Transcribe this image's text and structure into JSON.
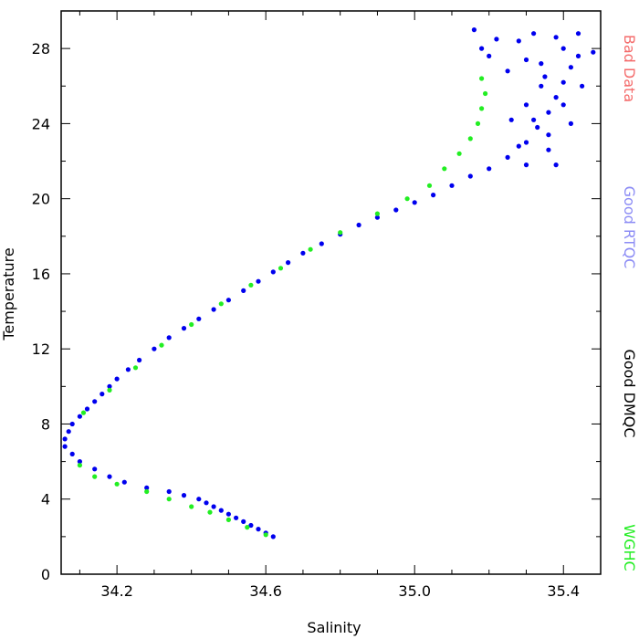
{
  "chart_data": {
    "type": "scatter",
    "xlabel": "Salinity",
    "ylabel": "Temperature",
    "xlim": [
      34.05,
      35.5
    ],
    "ylim": [
      0,
      30
    ],
    "x_ticks": [
      34.2,
      34.6,
      35.0,
      35.4
    ],
    "x_tick_labels": [
      "34.2",
      "34.6",
      "35.0",
      "35.4"
    ],
    "y_ticks": [
      0,
      4,
      8,
      12,
      16,
      20,
      24,
      28
    ],
    "y_tick_labels": [
      "0",
      "4",
      "8",
      "12",
      "16",
      "20",
      "24",
      "28"
    ],
    "grid": false,
    "legend_position": "right",
    "legend": [
      {
        "label": "Bad Data",
        "color": "#f46b6b"
      },
      {
        "label": "Good RTQC",
        "color": "#8c8cf5"
      },
      {
        "label": "Good DMQC",
        "color": "#000000"
      },
      {
        "label": "WGHC",
        "color": "#22ee22"
      }
    ],
    "series": [
      {
        "color": "#0000ee",
        "points": [
          [
            34.62,
            2.0
          ],
          [
            34.6,
            2.2
          ],
          [
            34.58,
            2.4
          ],
          [
            34.56,
            2.6
          ],
          [
            34.54,
            2.8
          ],
          [
            34.52,
            3.0
          ],
          [
            34.5,
            3.2
          ],
          [
            34.48,
            3.4
          ],
          [
            34.46,
            3.6
          ],
          [
            34.44,
            3.8
          ],
          [
            34.42,
            4.0
          ],
          [
            34.38,
            4.2
          ],
          [
            34.34,
            4.4
          ],
          [
            34.28,
            4.6
          ],
          [
            34.22,
            4.9
          ],
          [
            34.18,
            5.2
          ],
          [
            34.14,
            5.6
          ],
          [
            34.1,
            6.0
          ],
          [
            34.08,
            6.4
          ],
          [
            34.06,
            6.8
          ],
          [
            34.06,
            7.2
          ],
          [
            34.07,
            7.6
          ],
          [
            34.08,
            8.0
          ],
          [
            34.1,
            8.4
          ],
          [
            34.12,
            8.8
          ],
          [
            34.14,
            9.2
          ],
          [
            34.16,
            9.6
          ],
          [
            34.18,
            10.0
          ],
          [
            34.2,
            10.4
          ],
          [
            34.23,
            10.9
          ],
          [
            34.26,
            11.4
          ],
          [
            34.3,
            12.0
          ],
          [
            34.34,
            12.6
          ],
          [
            34.38,
            13.1
          ],
          [
            34.42,
            13.6
          ],
          [
            34.46,
            14.1
          ],
          [
            34.5,
            14.6
          ],
          [
            34.54,
            15.1
          ],
          [
            34.58,
            15.6
          ],
          [
            34.62,
            16.1
          ],
          [
            34.66,
            16.6
          ],
          [
            34.7,
            17.1
          ],
          [
            34.75,
            17.6
          ],
          [
            34.8,
            18.1
          ],
          [
            34.85,
            18.6
          ],
          [
            34.9,
            19.0
          ],
          [
            34.95,
            19.4
          ],
          [
            35.0,
            19.8
          ],
          [
            35.05,
            20.2
          ],
          [
            35.1,
            20.7
          ],
          [
            35.15,
            21.2
          ],
          [
            35.2,
            21.6
          ],
          [
            35.25,
            22.2
          ],
          [
            35.3,
            23.0
          ],
          [
            35.33,
            23.8
          ],
          [
            35.36,
            24.6
          ],
          [
            35.38,
            25.4
          ],
          [
            35.4,
            26.2
          ],
          [
            35.42,
            27.0
          ],
          [
            35.44,
            27.6
          ],
          [
            35.3,
            25.0
          ],
          [
            35.35,
            26.5
          ],
          [
            35.32,
            24.2
          ],
          [
            35.28,
            22.8
          ],
          [
            35.36,
            23.4
          ],
          [
            35.4,
            25.0
          ],
          [
            35.34,
            27.2
          ],
          [
            35.45,
            26.0
          ],
          [
            35.48,
            27.8
          ],
          [
            35.38,
            28.6
          ],
          [
            35.32,
            28.8
          ],
          [
            35.28,
            28.4
          ],
          [
            35.25,
            26.8
          ],
          [
            35.36,
            22.6
          ],
          [
            35.3,
            21.8
          ],
          [
            35.42,
            24.0
          ],
          [
            35.26,
            24.2
          ],
          [
            35.38,
            21.8
          ],
          [
            35.22,
            28.5
          ],
          [
            35.18,
            28.0
          ],
          [
            35.16,
            29.0
          ],
          [
            35.2,
            27.6
          ],
          [
            35.34,
            26.0
          ],
          [
            35.4,
            28.0
          ],
          [
            35.44,
            28.8
          ],
          [
            35.3,
            27.4
          ]
        ]
      },
      {
        "color": "#22ee22",
        "points": [
          [
            34.6,
            2.1
          ],
          [
            34.55,
            2.5
          ],
          [
            34.5,
            2.9
          ],
          [
            34.45,
            3.3
          ],
          [
            34.4,
            3.6
          ],
          [
            34.34,
            4.0
          ],
          [
            34.28,
            4.4
          ],
          [
            34.2,
            4.8
          ],
          [
            34.14,
            5.2
          ],
          [
            34.1,
            5.8
          ],
          [
            34.11,
            8.6
          ],
          [
            34.18,
            9.8
          ],
          [
            34.25,
            11.0
          ],
          [
            34.32,
            12.2
          ],
          [
            34.4,
            13.3
          ],
          [
            34.48,
            14.4
          ],
          [
            34.56,
            15.4
          ],
          [
            34.64,
            16.3
          ],
          [
            34.72,
            17.3
          ],
          [
            34.8,
            18.2
          ],
          [
            34.9,
            19.2
          ],
          [
            34.98,
            20.0
          ],
          [
            35.04,
            20.7
          ],
          [
            35.08,
            21.6
          ],
          [
            35.12,
            22.4
          ],
          [
            35.15,
            23.2
          ],
          [
            35.17,
            24.0
          ],
          [
            35.18,
            24.8
          ],
          [
            35.19,
            25.6
          ],
          [
            35.18,
            26.4
          ]
        ]
      }
    ]
  }
}
